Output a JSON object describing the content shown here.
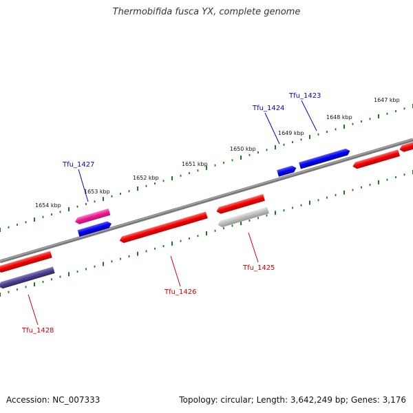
{
  "title": "Thermobifida fusca YX, complete genome",
  "footer": {
    "accession": "Accession: NC_007333",
    "summary": "Topology: circular; Length: 3,642,249 bp; Genes: 3,176"
  },
  "ticks": [
    {
      "label": "1647 kbp"
    },
    {
      "label": "1648 kbp"
    },
    {
      "label": "1649 kbp"
    },
    {
      "label": "1650 kbp"
    },
    {
      "label": "1651 kbp"
    },
    {
      "label": "1652 kbp"
    },
    {
      "label": "1653 kbp"
    },
    {
      "label": "1654 kbp"
    }
  ],
  "genes": [
    {
      "name": "Tfu_1423",
      "strand": "forward",
      "color": "#0000ee"
    },
    {
      "name": "Tfu_1424",
      "strand": "forward",
      "color": "#0000ee"
    },
    {
      "name": "Tfu_1425",
      "strand": "reverse",
      "color": "#bbbbbb"
    },
    {
      "name": "Tfu_1426",
      "strand": "reverse",
      "color": "#ee0000"
    },
    {
      "name": "Tfu_1427",
      "strand": "forward",
      "color": "#ee1493"
    },
    {
      "name": "Tfu_1428",
      "strand": "reverse",
      "color": "#4a3f8c"
    }
  ],
  "label_colors": {
    "forward": "#0000cc",
    "reverse": "#cc0000"
  }
}
